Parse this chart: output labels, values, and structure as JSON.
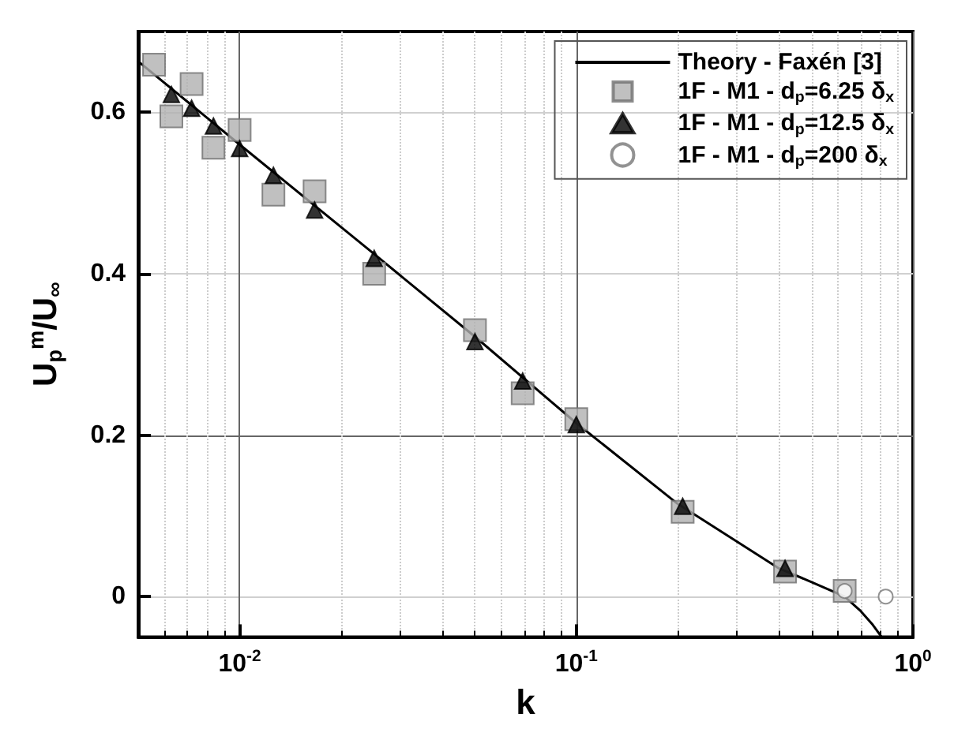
{
  "chart_data": {
    "type": "scatter",
    "xlabel": "k",
    "ylabel": "U$_{p}$$^{m}$/U$_{∞}$",
    "log": "x",
    "xlim": [
      0.005,
      1
    ],
    "xticks": [
      {
        "value": 0.01,
        "label": "10$^{-2}$"
      },
      {
        "value": 0.1,
        "label": "10$^{-1}$"
      },
      {
        "value": 1,
        "label": "10$^{0}$"
      }
    ],
    "ylim": [
      -0.05,
      0.7
    ],
    "yticks": [
      0,
      0.2,
      0.4,
      0.6
    ],
    "grid": true,
    "legend": "top right",
    "series": [
      {
        "name": "Theory - Faxén [3]",
        "type": "line",
        "marker": "none",
        "line_style": "solid",
        "color": "#000000",
        "x": [
          0.005,
          0.01,
          0.025,
          0.05,
          0.1,
          0.2,
          0.4,
          0.5,
          0.627,
          0.7,
          0.76,
          0.807
        ],
        "values": [
          0.663,
          0.56,
          0.425,
          0.322,
          0.215,
          0.115,
          0.035,
          0.018,
          0.0,
          -0.018,
          -0.035,
          -0.05
        ]
      },
      {
        "name": "1F - M1 - d$_{p}$=6.25 δ$_{x}$",
        "marker": "square",
        "color": "#b0b0b0",
        "x": [
          0.00557,
          0.00627,
          0.0072,
          0.00836,
          0.01,
          0.0126,
          0.0167,
          0.0251,
          0.05,
          0.0693,
          0.1,
          0.207,
          0.417,
          0.627
        ],
        "values": [
          0.659,
          0.595,
          0.635,
          0.556,
          0.578,
          0.498,
          0.502,
          0.4,
          0.33,
          0.252,
          0.22,
          0.105,
          0.031,
          0.007
        ]
      },
      {
        "name": "1F - M1 - d$_{p}$=12.5 δ$_{x}$",
        "marker": "triangle",
        "color": "#000000",
        "x": [
          0.00627,
          0.0072,
          0.00836,
          0.01,
          0.0126,
          0.0167,
          0.0251,
          0.05,
          0.0693,
          0.1,
          0.207,
          0.417
        ],
        "values": [
          0.622,
          0.605,
          0.583,
          0.555,
          0.522,
          0.479,
          0.419,
          0.316,
          0.267,
          0.213,
          0.112,
          0.035
        ]
      },
      {
        "name": "1F - M1 - d$_{p}$=200 δ$_{x}$",
        "marker": "circle",
        "color": "#ffffff",
        "x": [
          0.627,
          0.83
        ],
        "values": [
          0.007,
          0.0
        ]
      }
    ]
  }
}
